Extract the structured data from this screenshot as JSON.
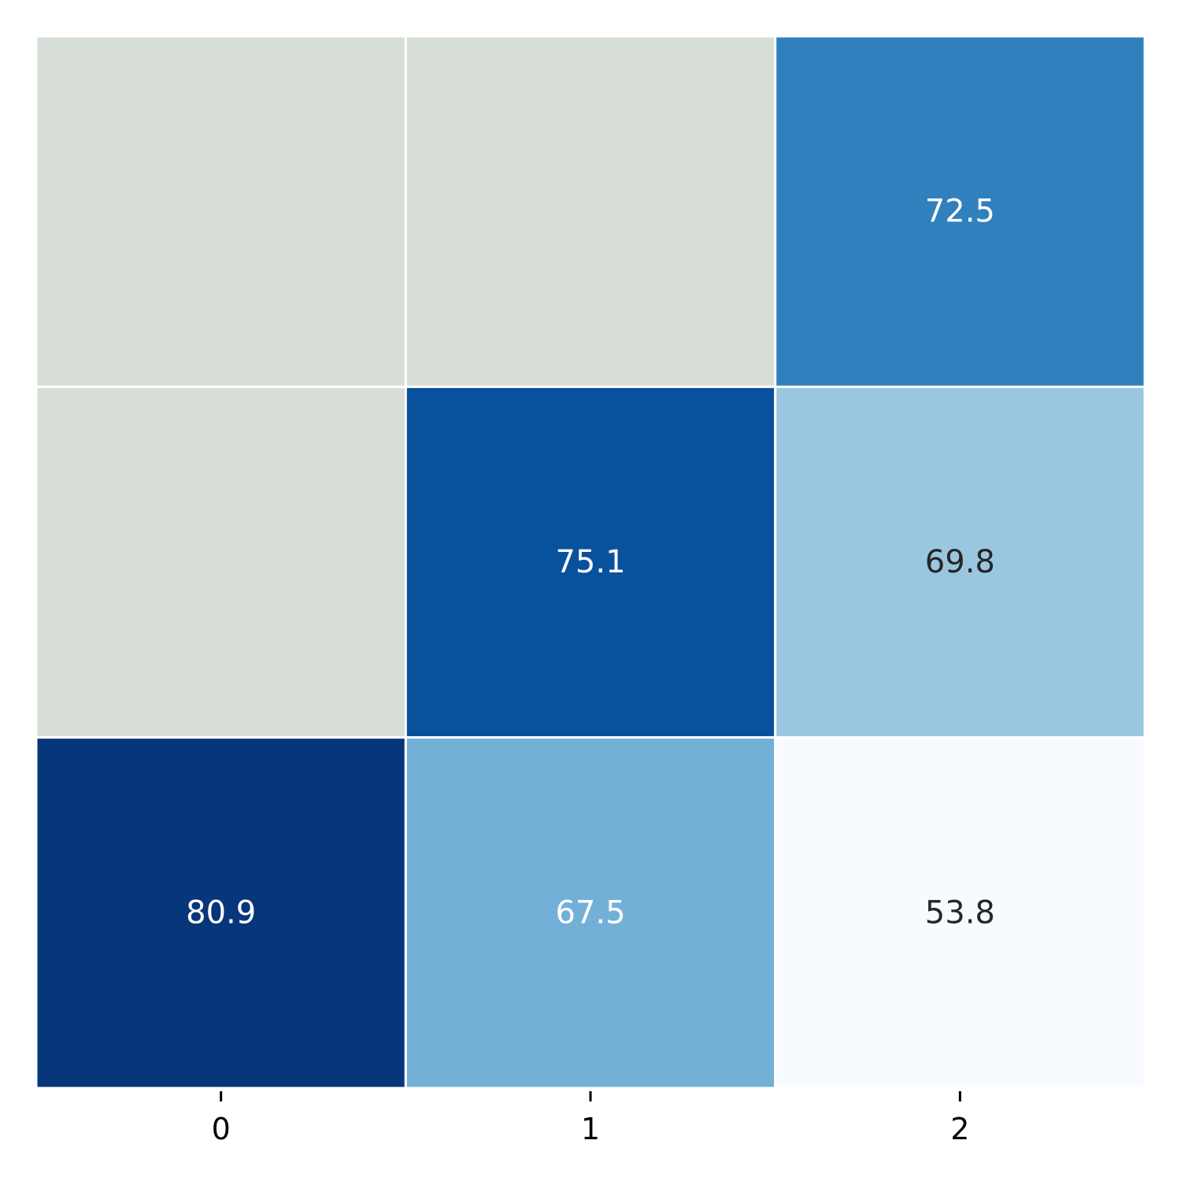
{
  "chart_data": {
    "type": "heatmap",
    "x_tick_labels": [
      "0",
      "1",
      "2"
    ],
    "rows": 3,
    "cols": 3,
    "cells": [
      [
        null,
        null,
        72.5
      ],
      [
        null,
        75.1,
        69.8
      ],
      [
        80.9,
        67.5,
        53.8
      ]
    ],
    "cell_colors": [
      [
        "#d7ddd7",
        "#d7ddd7",
        "#3080bd"
      ],
      [
        "#d7ddd7",
        "#08519c",
        "#9ac7df"
      ],
      [
        "#08367a",
        "#73b0d7",
        "#f7fbff"
      ]
    ],
    "label_colors": [
      [
        null,
        null,
        "#ffffff"
      ],
      [
        null,
        "#ffffff",
        "#262626"
      ],
      [
        "#ffffff",
        "#ffffff",
        "#262626"
      ]
    ],
    "colormap": "Blues",
    "missing_color": "#d7ddd7",
    "grid": false,
    "legend": "none"
  }
}
